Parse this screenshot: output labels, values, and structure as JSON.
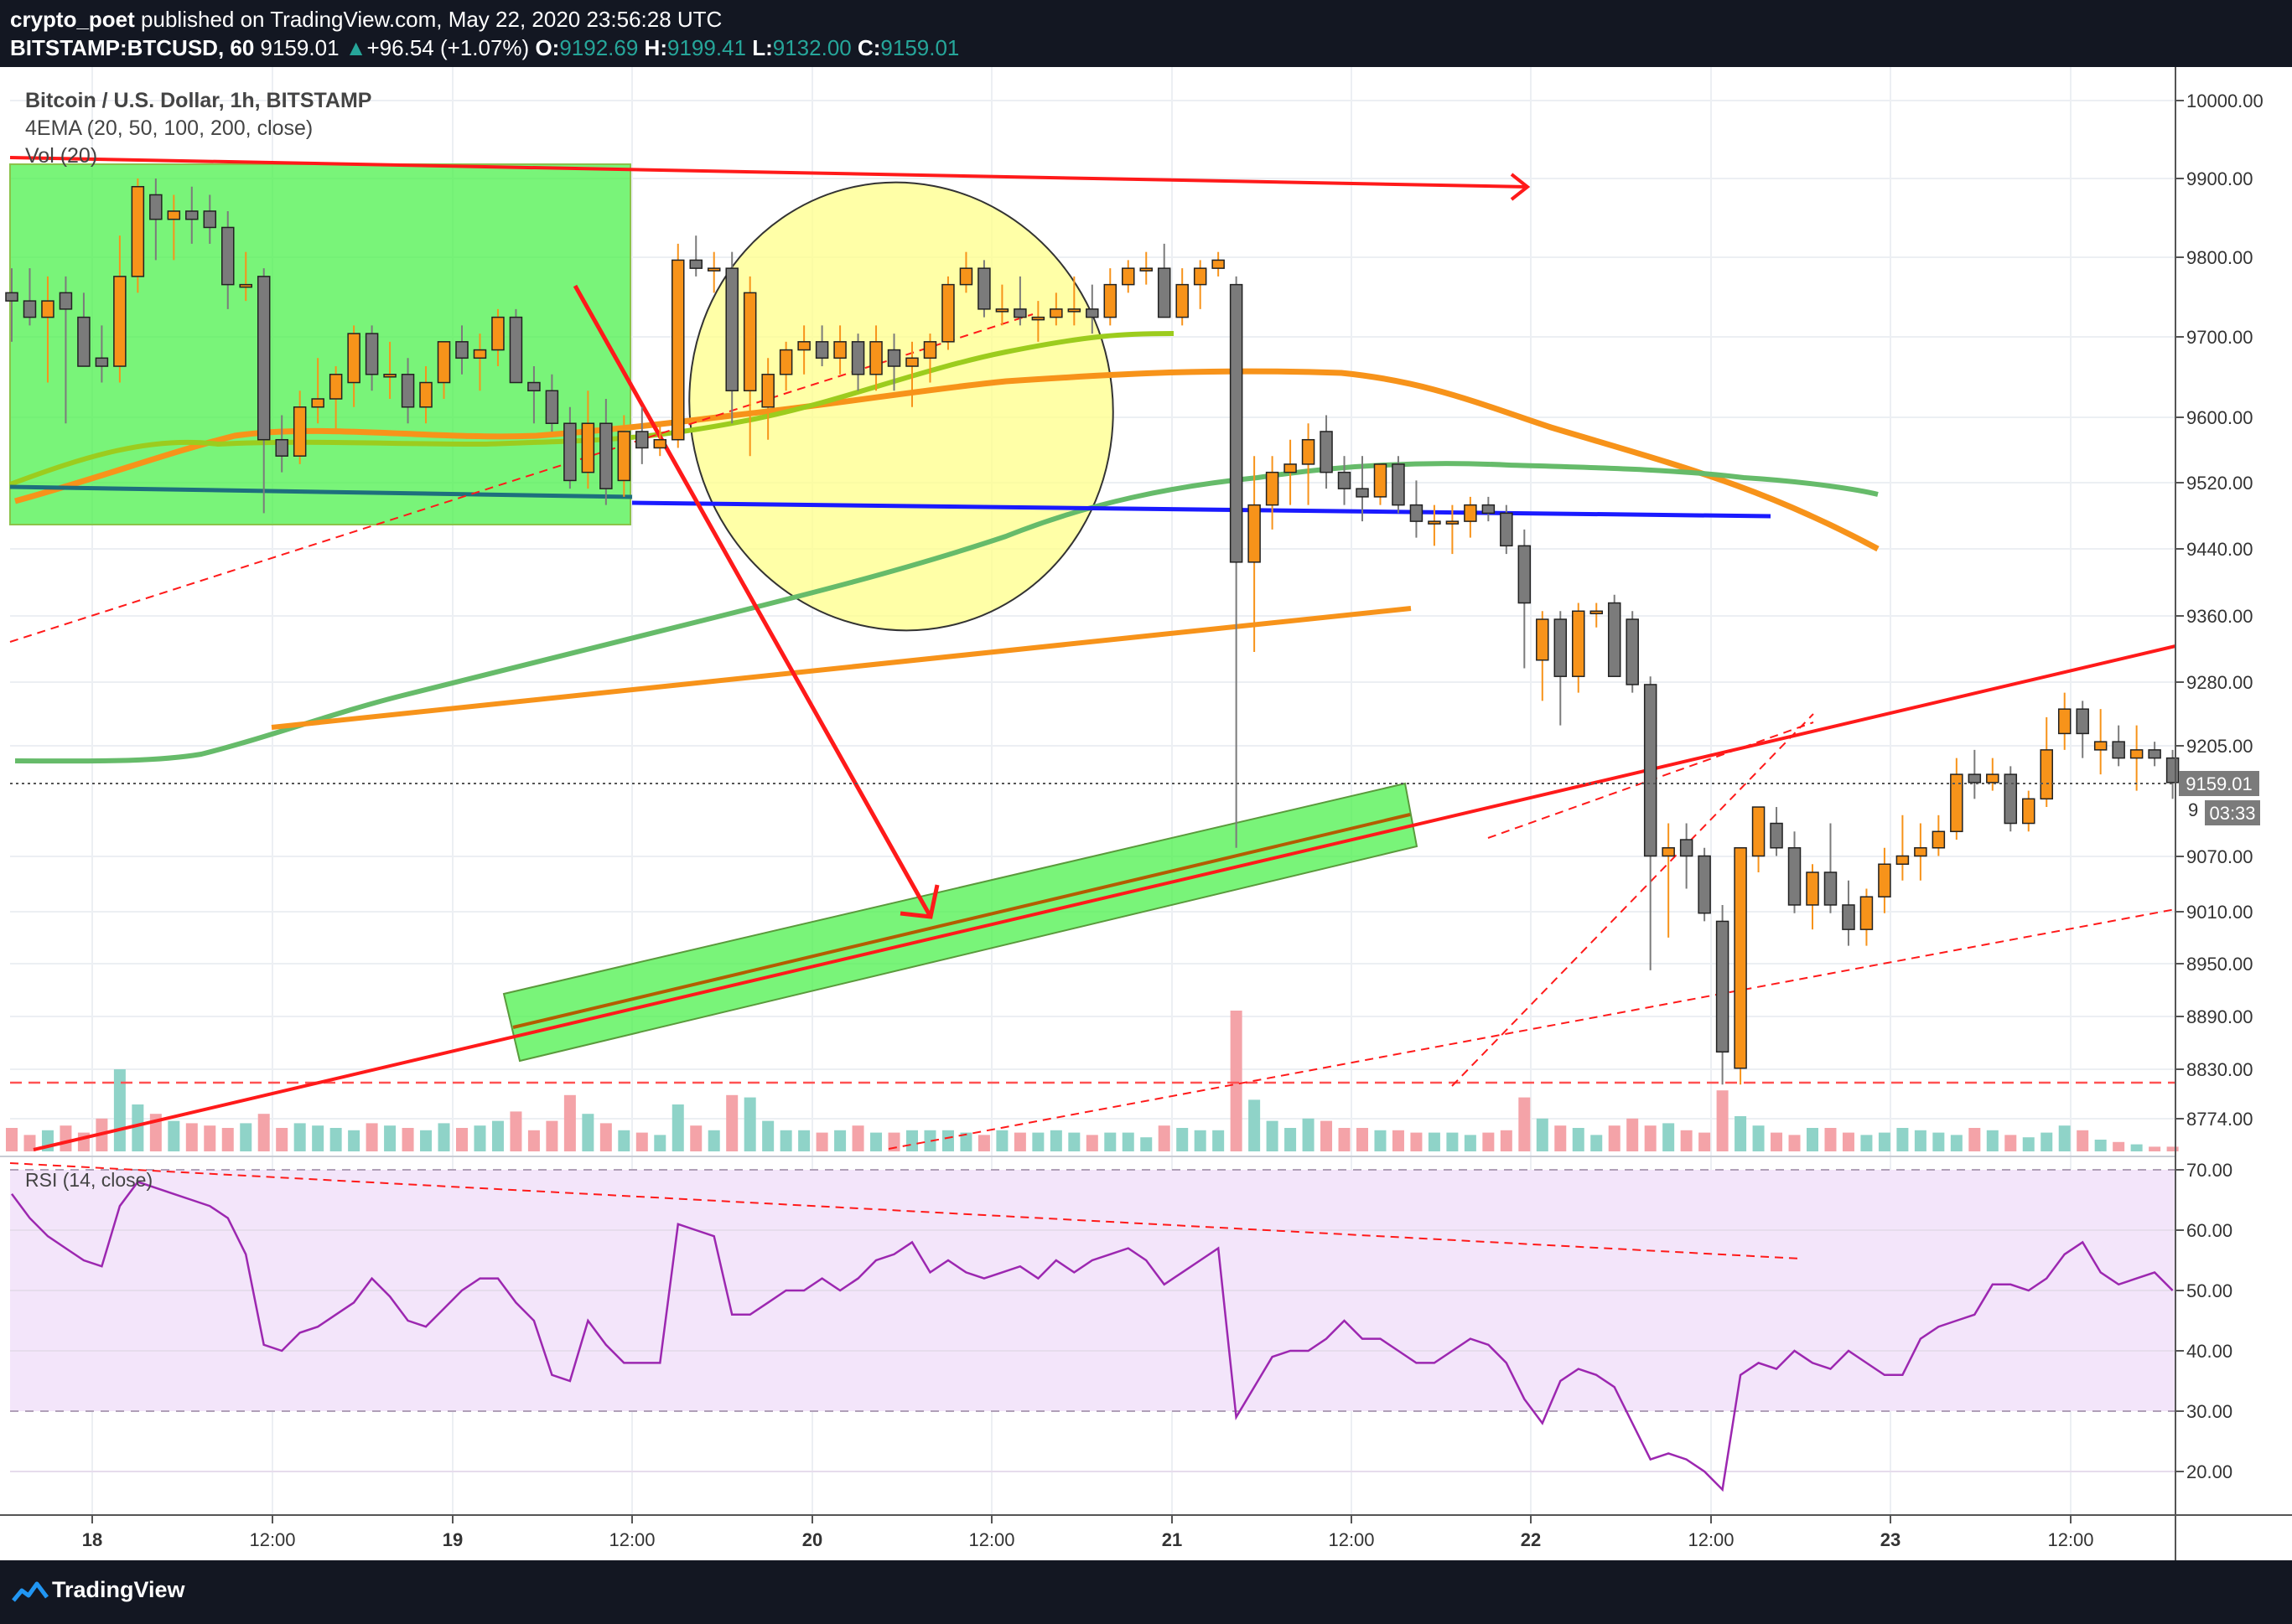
{
  "header": {
    "author": "crypto_poet",
    "published_text": "published on TradingView.com, May 22, 2020 23:56:28 UTC",
    "symbol": "BITSTAMP:BTCUSD, 60",
    "last": "9159.01",
    "change": "+96.54 (+1.07%)",
    "o_label": "O:",
    "o_value": "9192.69",
    "h_label": "H:",
    "h_value": "9199.41",
    "l_label": "L:",
    "l_value": "9132.00",
    "c_label": "C:",
    "c_value": "9159.01"
  },
  "legend": {
    "title": "Bitcoin / U.S. Dollar, 1h, BITSTAMP",
    "ema": "4EMA (20, 50, 100, 200, close)",
    "vol": "Vol (20)",
    "rsi": "RSI (14, close)"
  },
  "price_badge": {
    "value": "9159.01",
    "countdown": "03:33",
    "hidden_label": "9"
  },
  "footer": {
    "brand": "TradingView"
  },
  "colors": {
    "up": "#f7931a",
    "down": "#7b7b7b",
    "vol_up": "#8fd3c8",
    "vol_down": "#f4a3a8",
    "ema_orange": "#f7931a",
    "ema_green": "#66bb6a",
    "trend_red": "#ff1a1a",
    "blue_line": "#1a1aff",
    "teal_line": "#1e6f7d",
    "rsi_line": "#9c27b0",
    "rsi_band": "#f3e5fa",
    "zone_green": "#4cf04c",
    "circle_fill": "#ffff8a"
  },
  "chart_data": {
    "type": "candlestick",
    "title": "Bitcoin / U.S. Dollar, 1h, BITSTAMP",
    "y_ticks": [
      "10000.00",
      "9900.00",
      "9800.00",
      "9700.00",
      "9600.00",
      "9520.00",
      "9440.00",
      "9360.00",
      "9280.00",
      "9205.00",
      "9070.00",
      "9010.00",
      "8950.00",
      "8890.00",
      "8830.00",
      "8774.00"
    ],
    "x_ticks": [
      "18",
      "12:00",
      "19",
      "12:00",
      "20",
      "12:00",
      "21",
      "12:00",
      "22",
      "12:00",
      "23",
      "12:00"
    ],
    "rsi_ticks": [
      "70.00",
      "60.00",
      "50.00",
      "40.00",
      "30.00",
      "20.00"
    ],
    "rsi_bands": [
      30,
      70
    ],
    "ylim": [
      8740,
      10010
    ],
    "hours_shown": 120,
    "candles": [
      [
        0,
        9760,
        9790,
        9700,
        9750
      ],
      [
        1,
        9750,
        9790,
        9720,
        9730
      ],
      [
        2,
        9730,
        9780,
        9650,
        9750
      ],
      [
        3,
        9760,
        9780,
        9600,
        9740
      ],
      [
        4,
        9730,
        9760,
        9680,
        9670
      ],
      [
        5,
        9680,
        9720,
        9650,
        9670
      ],
      [
        6,
        9670,
        9830,
        9650,
        9780
      ],
      [
        7,
        9780,
        9900,
        9760,
        9890
      ],
      [
        8,
        9880,
        9900,
        9800,
        9850
      ],
      [
        9,
        9850,
        9880,
        9800,
        9860
      ],
      [
        10,
        9860,
        9890,
        9820,
        9850
      ],
      [
        11,
        9860,
        9880,
        9820,
        9840
      ],
      [
        12,
        9840,
        9860,
        9740,
        9770
      ],
      [
        13,
        9770,
        9810,
        9750,
        9770
      ],
      [
        14,
        9780,
        9790,
        9490,
        9580
      ],
      [
        15,
        9580,
        9610,
        9540,
        9560
      ],
      [
        16,
        9560,
        9640,
        9550,
        9620
      ],
      [
        17,
        9620,
        9680,
        9600,
        9630
      ],
      [
        18,
        9630,
        9670,
        9590,
        9660
      ],
      [
        19,
        9650,
        9720,
        9620,
        9710
      ],
      [
        20,
        9710,
        9720,
        9640,
        9660
      ],
      [
        21,
        9660,
        9700,
        9630,
        9660
      ],
      [
        22,
        9660,
        9680,
        9600,
        9620
      ],
      [
        23,
        9620,
        9670,
        9600,
        9650
      ],
      [
        24,
        9650,
        9700,
        9630,
        9700
      ],
      [
        25,
        9700,
        9720,
        9660,
        9680
      ],
      [
        26,
        9680,
        9710,
        9640,
        9690
      ],
      [
        27,
        9690,
        9740,
        9670,
        9730
      ],
      [
        28,
        9730,
        9740,
        9650,
        9650
      ],
      [
        29,
        9650,
        9670,
        9600,
        9640
      ],
      [
        30,
        9640,
        9660,
        9590,
        9600
      ],
      [
        31,
        9600,
        9620,
        9520,
        9530
      ],
      [
        32,
        9540,
        9640,
        9520,
        9600
      ],
      [
        33,
        9600,
        9630,
        9500,
        9520
      ],
      [
        34,
        9530,
        9610,
        9510,
        9590
      ],
      [
        35,
        9590,
        9620,
        9550,
        9570
      ],
      [
        36,
        9570,
        9600,
        9560,
        9580
      ],
      [
        37,
        9580,
        9820,
        9570,
        9800
      ],
      [
        38,
        9800,
        9830,
        9780,
        9790
      ],
      [
        39,
        9790,
        9810,
        9760,
        9790
      ],
      [
        40,
        9790,
        9810,
        9600,
        9640
      ],
      [
        41,
        9640,
        9780,
        9560,
        9760
      ],
      [
        42,
        9620,
        9680,
        9580,
        9660
      ],
      [
        43,
        9660,
        9700,
        9640,
        9690
      ],
      [
        44,
        9690,
        9720,
        9660,
        9700
      ],
      [
        45,
        9700,
        9720,
        9670,
        9680
      ],
      [
        46,
        9680,
        9720,
        9660,
        9700
      ],
      [
        47,
        9700,
        9710,
        9640,
        9660
      ],
      [
        48,
        9660,
        9720,
        9640,
        9700
      ],
      [
        49,
        9690,
        9710,
        9640,
        9670
      ],
      [
        50,
        9670,
        9700,
        9620,
        9680
      ],
      [
        51,
        9680,
        9710,
        9650,
        9700
      ],
      [
        52,
        9700,
        9780,
        9690,
        9770
      ],
      [
        53,
        9770,
        9810,
        9760,
        9790
      ],
      [
        54,
        9790,
        9800,
        9730,
        9740
      ],
      [
        55,
        9740,
        9770,
        9720,
        9740
      ],
      [
        56,
        9740,
        9780,
        9720,
        9730
      ],
      [
        57,
        9730,
        9750,
        9700,
        9730
      ],
      [
        58,
        9730,
        9760,
        9720,
        9740
      ],
      [
        59,
        9740,
        9780,
        9720,
        9740
      ],
      [
        60,
        9740,
        9770,
        9710,
        9730
      ],
      [
        61,
        9730,
        9790,
        9720,
        9770
      ],
      [
        62,
        9770,
        9800,
        9760,
        9790
      ],
      [
        63,
        9790,
        9810,
        9770,
        9790
      ],
      [
        64,
        9790,
        9820,
        9730,
        9730
      ],
      [
        65,
        9730,
        9790,
        9720,
        9770
      ],
      [
        66,
        9770,
        9800,
        9740,
        9790
      ],
      [
        67,
        9790,
        9810,
        9780,
        9800
      ],
      [
        68,
        9770,
        9780,
        9080,
        9430
      ],
      [
        69,
        9430,
        9560,
        9320,
        9500
      ],
      [
        70,
        9500,
        9560,
        9470,
        9540
      ],
      [
        71,
        9540,
        9580,
        9500,
        9550
      ],
      [
        72,
        9550,
        9600,
        9500,
        9580
      ],
      [
        73,
        9590,
        9610,
        9520,
        9540
      ],
      [
        74,
        9540,
        9560,
        9500,
        9520
      ],
      [
        75,
        9520,
        9560,
        9480,
        9510
      ],
      [
        76,
        9510,
        9550,
        9500,
        9550
      ],
      [
        77,
        9550,
        9560,
        9490,
        9500
      ],
      [
        78,
        9500,
        9530,
        9460,
        9480
      ],
      [
        79,
        9480,
        9500,
        9450,
        9480
      ],
      [
        80,
        9480,
        9500,
        9440,
        9480
      ],
      [
        81,
        9480,
        9510,
        9460,
        9500
      ],
      [
        82,
        9500,
        9510,
        9480,
        9490
      ],
      [
        83,
        9490,
        9500,
        9440,
        9450
      ],
      [
        84,
        9450,
        9470,
        9300,
        9380
      ],
      [
        85,
        9310,
        9370,
        9260,
        9360
      ],
      [
        86,
        9360,
        9370,
        9230,
        9290
      ],
      [
        87,
        9290,
        9380,
        9270,
        9370
      ],
      [
        88,
        9370,
        9380,
        9350,
        9370
      ],
      [
        89,
        9380,
        9390,
        9290,
        9290
      ],
      [
        90,
        9360,
        9370,
        9270,
        9280
      ],
      [
        91,
        9280,
        9290,
        8930,
        9070
      ],
      [
        92,
        9070,
        9110,
        8970,
        9080
      ],
      [
        93,
        9090,
        9110,
        9030,
        9070
      ],
      [
        94,
        9070,
        9080,
        8990,
        9000
      ],
      [
        95,
        8990,
        9010,
        8790,
        8830
      ],
      [
        96,
        8810,
        9070,
        8790,
        9080
      ],
      [
        97,
        9070,
        9130,
        9050,
        9130
      ],
      [
        98,
        9110,
        9130,
        9070,
        9080
      ],
      [
        99,
        9080,
        9100,
        9000,
        9010
      ],
      [
        100,
        9010,
        9060,
        8980,
        9050
      ],
      [
        101,
        9050,
        9110,
        9000,
        9010
      ],
      [
        102,
        9010,
        9040,
        8960,
        8980
      ],
      [
        103,
        8980,
        9030,
        8960,
        9020
      ],
      [
        104,
        9020,
        9080,
        9000,
        9060
      ],
      [
        105,
        9060,
        9120,
        9040,
        9070
      ],
      [
        106,
        9070,
        9110,
        9040,
        9080
      ],
      [
        107,
        9080,
        9120,
        9070,
        9100
      ],
      [
        108,
        9100,
        9190,
        9090,
        9170
      ],
      [
        109,
        9170,
        9200,
        9140,
        9160
      ],
      [
        110,
        9160,
        9190,
        9150,
        9170
      ],
      [
        111,
        9170,
        9180,
        9100,
        9110
      ],
      [
        112,
        9110,
        9150,
        9100,
        9140
      ],
      [
        113,
        9140,
        9240,
        9130,
        9200
      ],
      [
        114,
        9220,
        9270,
        9200,
        9250
      ],
      [
        115,
        9250,
        9260,
        9190,
        9220
      ],
      [
        116,
        9200,
        9250,
        9170,
        9210
      ],
      [
        117,
        9210,
        9230,
        9180,
        9190
      ],
      [
        118,
        9190,
        9230,
        9150,
        9200
      ],
      [
        119,
        9200,
        9210,
        9180,
        9190
      ],
      [
        120,
        9190,
        9200,
        9140,
        9160
      ]
    ],
    "rsi": [
      66,
      62,
      59,
      57,
      55,
      54,
      64,
      68,
      67,
      66,
      65,
      64,
      62,
      56,
      41,
      40,
      43,
      44,
      46,
      48,
      52,
      49,
      45,
      44,
      47,
      50,
      52,
      52,
      48,
      45,
      36,
      35,
      45,
      41,
      38,
      38,
      38,
      61,
      60,
      59,
      46,
      46,
      48,
      50,
      50,
      52,
      50,
      52,
      55,
      56,
      58,
      53,
      55,
      53,
      52,
      53,
      54,
      52,
      55,
      53,
      55,
      56,
      57,
      55,
      51,
      53,
      55,
      57,
      29,
      34,
      39,
      40,
      40,
      42,
      45,
      42,
      42,
      40,
      38,
      38,
      40,
      42,
      41,
      38,
      32,
      28,
      35,
      37,
      36,
      34,
      28,
      22,
      23,
      22,
      20,
      17,
      36,
      38,
      37,
      40,
      38,
      37,
      40,
      38,
      36,
      36,
      42,
      44,
      45,
      46,
      51,
      51,
      50,
      52,
      56,
      58,
      53,
      51,
      52,
      53,
      50
    ],
    "volume": [
      10,
      7,
      9,
      11,
      8,
      14,
      35,
      20,
      16,
      13,
      12,
      11,
      10,
      12,
      16,
      10,
      12,
      11,
      10,
      9,
      12,
      11,
      10,
      9,
      12,
      10,
      11,
      13,
      17,
      9,
      13,
      24,
      16,
      12,
      9,
      8,
      7,
      20,
      11,
      9,
      24,
      23,
      13,
      9,
      9,
      8,
      9,
      11,
      8,
      8,
      9,
      9,
      9,
      8,
      7,
      9,
      8,
      8,
      9,
      8,
      7,
      8,
      8,
      6,
      11,
      10,
      9,
      9,
      60,
      22,
      13,
      10,
      14,
      13,
      10,
      10,
      9,
      9,
      8,
      8,
      8,
      7,
      8,
      9,
      23,
      14,
      11,
      10,
      7,
      11,
      14,
      11,
      12,
      9,
      8,
      26,
      15,
      11,
      8,
      7,
      10,
      10,
      8,
      7,
      8,
      10,
      9,
      8,
      7,
      10,
      9,
      7,
      6,
      8,
      11,
      9,
      5,
      4,
      3,
      2,
      2
    ]
  }
}
